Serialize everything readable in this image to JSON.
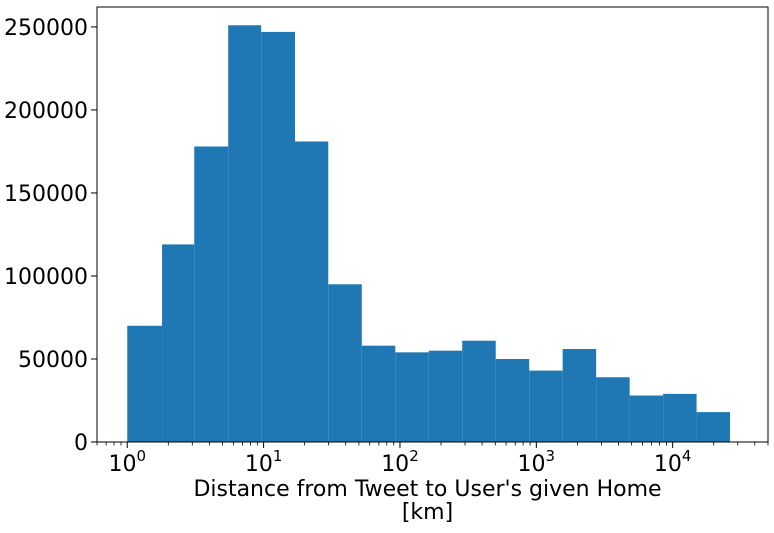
{
  "chart_data": {
    "type": "bar",
    "subtype": "histogram",
    "title": "",
    "xlabel": "Distance from Tweet to User's given Home",
    "xlabel_line2": "[km]",
    "ylabel": "",
    "xscale": "log",
    "xlim": [
      0.6,
      50000
    ],
    "ylim": [
      0,
      262000
    ],
    "grid": false,
    "legend": "none",
    "bar_color": "#1f77b4",
    "bin_edges": [
      1.0,
      1.8,
      3.1,
      5.5,
      9.6,
      17.0,
      29.8,
      52.5,
      92.4,
      162.6,
      286.2,
      503.7,
      886.5,
      1560.2,
      2745.9,
      4832.6,
      8505.1,
      14968.5
    ],
    "values": [
      70000,
      119000,
      178000,
      251000,
      247000,
      181000,
      95000,
      58000,
      54000,
      55000,
      61000,
      50000,
      43000,
      56000,
      39000,
      28000,
      29000,
      18000
    ],
    "y_ticks": [
      0,
      50000,
      100000,
      150000,
      200000,
      250000
    ],
    "y_tick_labels": [
      "0",
      "50000",
      "100000",
      "150000",
      "200000",
      "250000"
    ],
    "x_ticks": [
      1,
      10,
      100,
      1000,
      10000
    ],
    "x_tick_labels": [
      {
        "base": "10",
        "exp": "0"
      },
      {
        "base": "10",
        "exp": "1"
      },
      {
        "base": "10",
        "exp": "2"
      },
      {
        "base": "10",
        "exp": "3"
      },
      {
        "base": "10",
        "exp": "4"
      }
    ]
  }
}
